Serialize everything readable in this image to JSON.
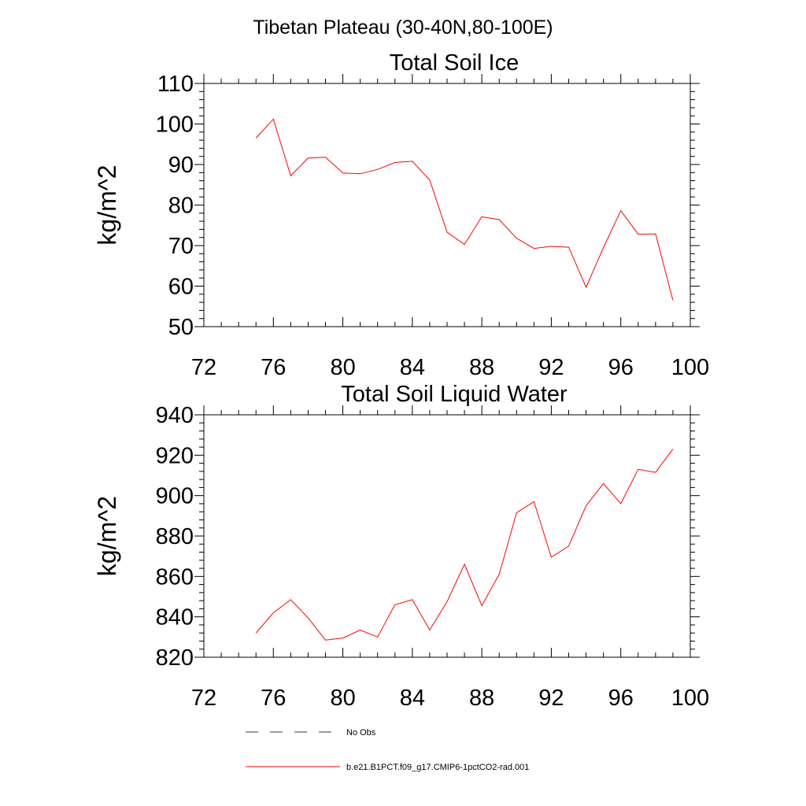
{
  "figure": {
    "title": "Tibetan Plateau (30-40N,80-100E)"
  },
  "chart_data": [
    {
      "type": "line",
      "title": "Total Soil Ice",
      "ylabel": "kg/m^2",
      "xlabel": "",
      "xlim": [
        72,
        100
      ],
      "ylim": [
        50,
        110
      ],
      "xticks": [
        72,
        76,
        80,
        84,
        88,
        92,
        96,
        100
      ],
      "yticks": [
        50,
        60,
        70,
        80,
        90,
        100,
        110
      ],
      "grid": false,
      "series": [
        {
          "name": "b.e21.B1PCT.f09_g17.CMIP6-1pctCO2-rad.001",
          "color": "#ff0000",
          "x": [
            75,
            76,
            77,
            78,
            79,
            80,
            81,
            82,
            83,
            84,
            85,
            86,
            87,
            88,
            89,
            90,
            91,
            92,
            93,
            94,
            95,
            96,
            97,
            98,
            99
          ],
          "y": [
            96.5,
            101.2,
            87.2,
            91.6,
            91.8,
            87.9,
            87.7,
            88.8,
            90.5,
            90.8,
            86.2,
            73.3,
            70.3,
            77.1,
            76.4,
            71.8,
            69.3,
            69.8,
            69.6,
            59.7,
            69.5,
            78.6,
            72.8,
            72.9,
            56.5
          ]
        }
      ]
    },
    {
      "type": "line",
      "title": "Total Soil Liquid Water",
      "ylabel": "kg/m^2",
      "xlabel": "",
      "xlim": [
        72,
        100
      ],
      "ylim": [
        820,
        940
      ],
      "xticks": [
        72,
        76,
        80,
        84,
        88,
        92,
        96,
        100
      ],
      "yticks": [
        820,
        840,
        860,
        880,
        900,
        920,
        940
      ],
      "grid": false,
      "series": [
        {
          "name": "b.e21.B1PCT.f09_g17.CMIP6-1pctCO2-rad.001",
          "color": "#ff0000",
          "x": [
            75,
            76,
            77,
            78,
            79,
            80,
            81,
            82,
            83,
            84,
            85,
            86,
            87,
            88,
            89,
            90,
            91,
            92,
            93,
            94,
            95,
            96,
            97,
            98,
            99
          ],
          "y": [
            832.0,
            842.0,
            848.5,
            839.5,
            828.5,
            829.5,
            833.5,
            830.0,
            846.0,
            848.5,
            833.5,
            847.5,
            866.0,
            845.5,
            861.0,
            891.5,
            897.0,
            869.5,
            875.0,
            895.0,
            906.0,
            896.0,
            913.0,
            911.5,
            923.0
          ]
        }
      ]
    }
  ],
  "legend": {
    "placement": "bottom",
    "items": [
      {
        "label": "No Obs",
        "style": "dashed",
        "color": "#3a3a5a"
      },
      {
        "label": "b.e21.B1PCT.f09_g17.CMIP6-1pctCO2-rad.001",
        "style": "solid",
        "color": "#ff0000"
      }
    ]
  }
}
